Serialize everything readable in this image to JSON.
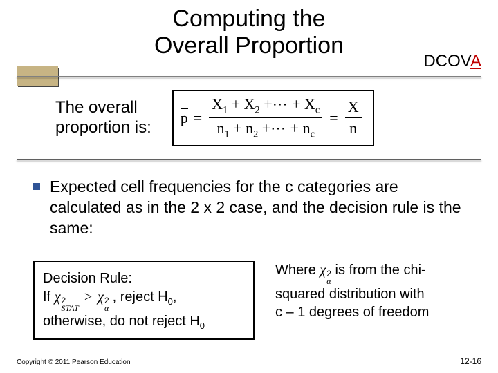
{
  "title_line1": "Computing the",
  "title_line2": "Overall Proportion",
  "dcova_prefix": "DCOV",
  "dcova_a": "A",
  "prop_label_line1": "The overall",
  "prop_label_line2": "proportion is:",
  "formula": {
    "lhs_symbol": "p",
    "eq": "=",
    "num_left": "X",
    "den_left": "n",
    "sub1": "1",
    "plus": "+",
    "sub2": "2",
    "ellipsis": "⋯",
    "subc": "c",
    "rhs_num": "X",
    "rhs_den": "n"
  },
  "bullet_text": "Expected cell frequencies for the c categories are calculated as in the  2 x 2  case, and the decision rule is the same:",
  "decision": {
    "heading": "Decision Rule:",
    "if": "If",
    "chi": "χ",
    "stat_sub": "STAT",
    "sup2": "2",
    "gt": ">",
    "alpha_sub": "α",
    "reject": ", reject H",
    "h0_sub": "0",
    "comma": ",",
    "otherwise": "otherwise, do not reject H"
  },
  "where": {
    "w": "Where ",
    "chi": "χ",
    "sup2": "2",
    "alpha": "α",
    "rest1": " is from the chi-",
    "rest2": "squared distribution with",
    "rest3": "c – 1 degrees of freedom"
  },
  "copyright": "Copyright © 2011 Pearson Education",
  "pagenum": "12-16"
}
